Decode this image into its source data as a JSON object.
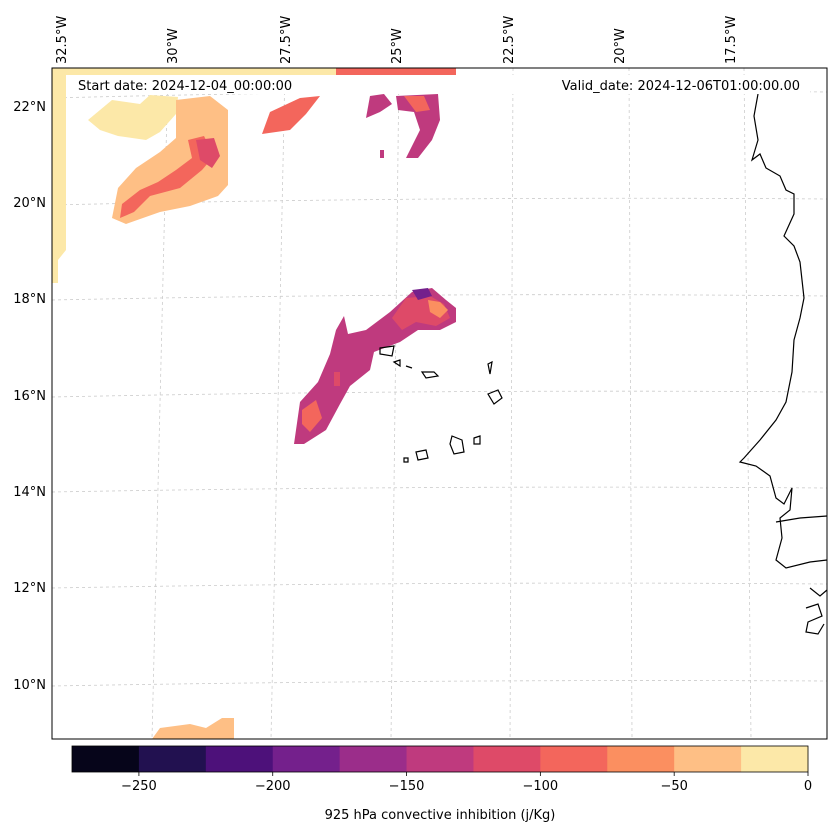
{
  "map": {
    "start_date": "Start date: 2024-12-04_00:00:00",
    "valid_date": "Valid_date: 2024-12-06T01:00:00.00",
    "lon_labels": [
      "32.5°W",
      "30°W",
      "27.5°W",
      "25°W",
      "22.5°W",
      "20°W",
      "17.5°W"
    ],
    "lat_labels": [
      "22°N",
      "20°N",
      "18°N",
      "16°N",
      "14°N",
      "12°N",
      "10°N"
    ]
  },
  "colorbar": {
    "label": "925 hPa convective inhibition (j/Kg)",
    "tick_labels": [
      "−250",
      "−200",
      "−150",
      "−100",
      "−50",
      "0"
    ],
    "levels": [
      -275,
      -250,
      -225,
      -200,
      -175,
      -150,
      -125,
      -100,
      -75,
      -50,
      -25,
      0
    ],
    "colors": [
      "#06051a",
      "#221150",
      "#4d117a",
      "#74208c",
      "#9b2d8a",
      "#bf3a7e",
      "#de4a68",
      "#f3665c",
      "#fb8f60",
      "#febf85",
      "#fce8a8"
    ]
  }
}
